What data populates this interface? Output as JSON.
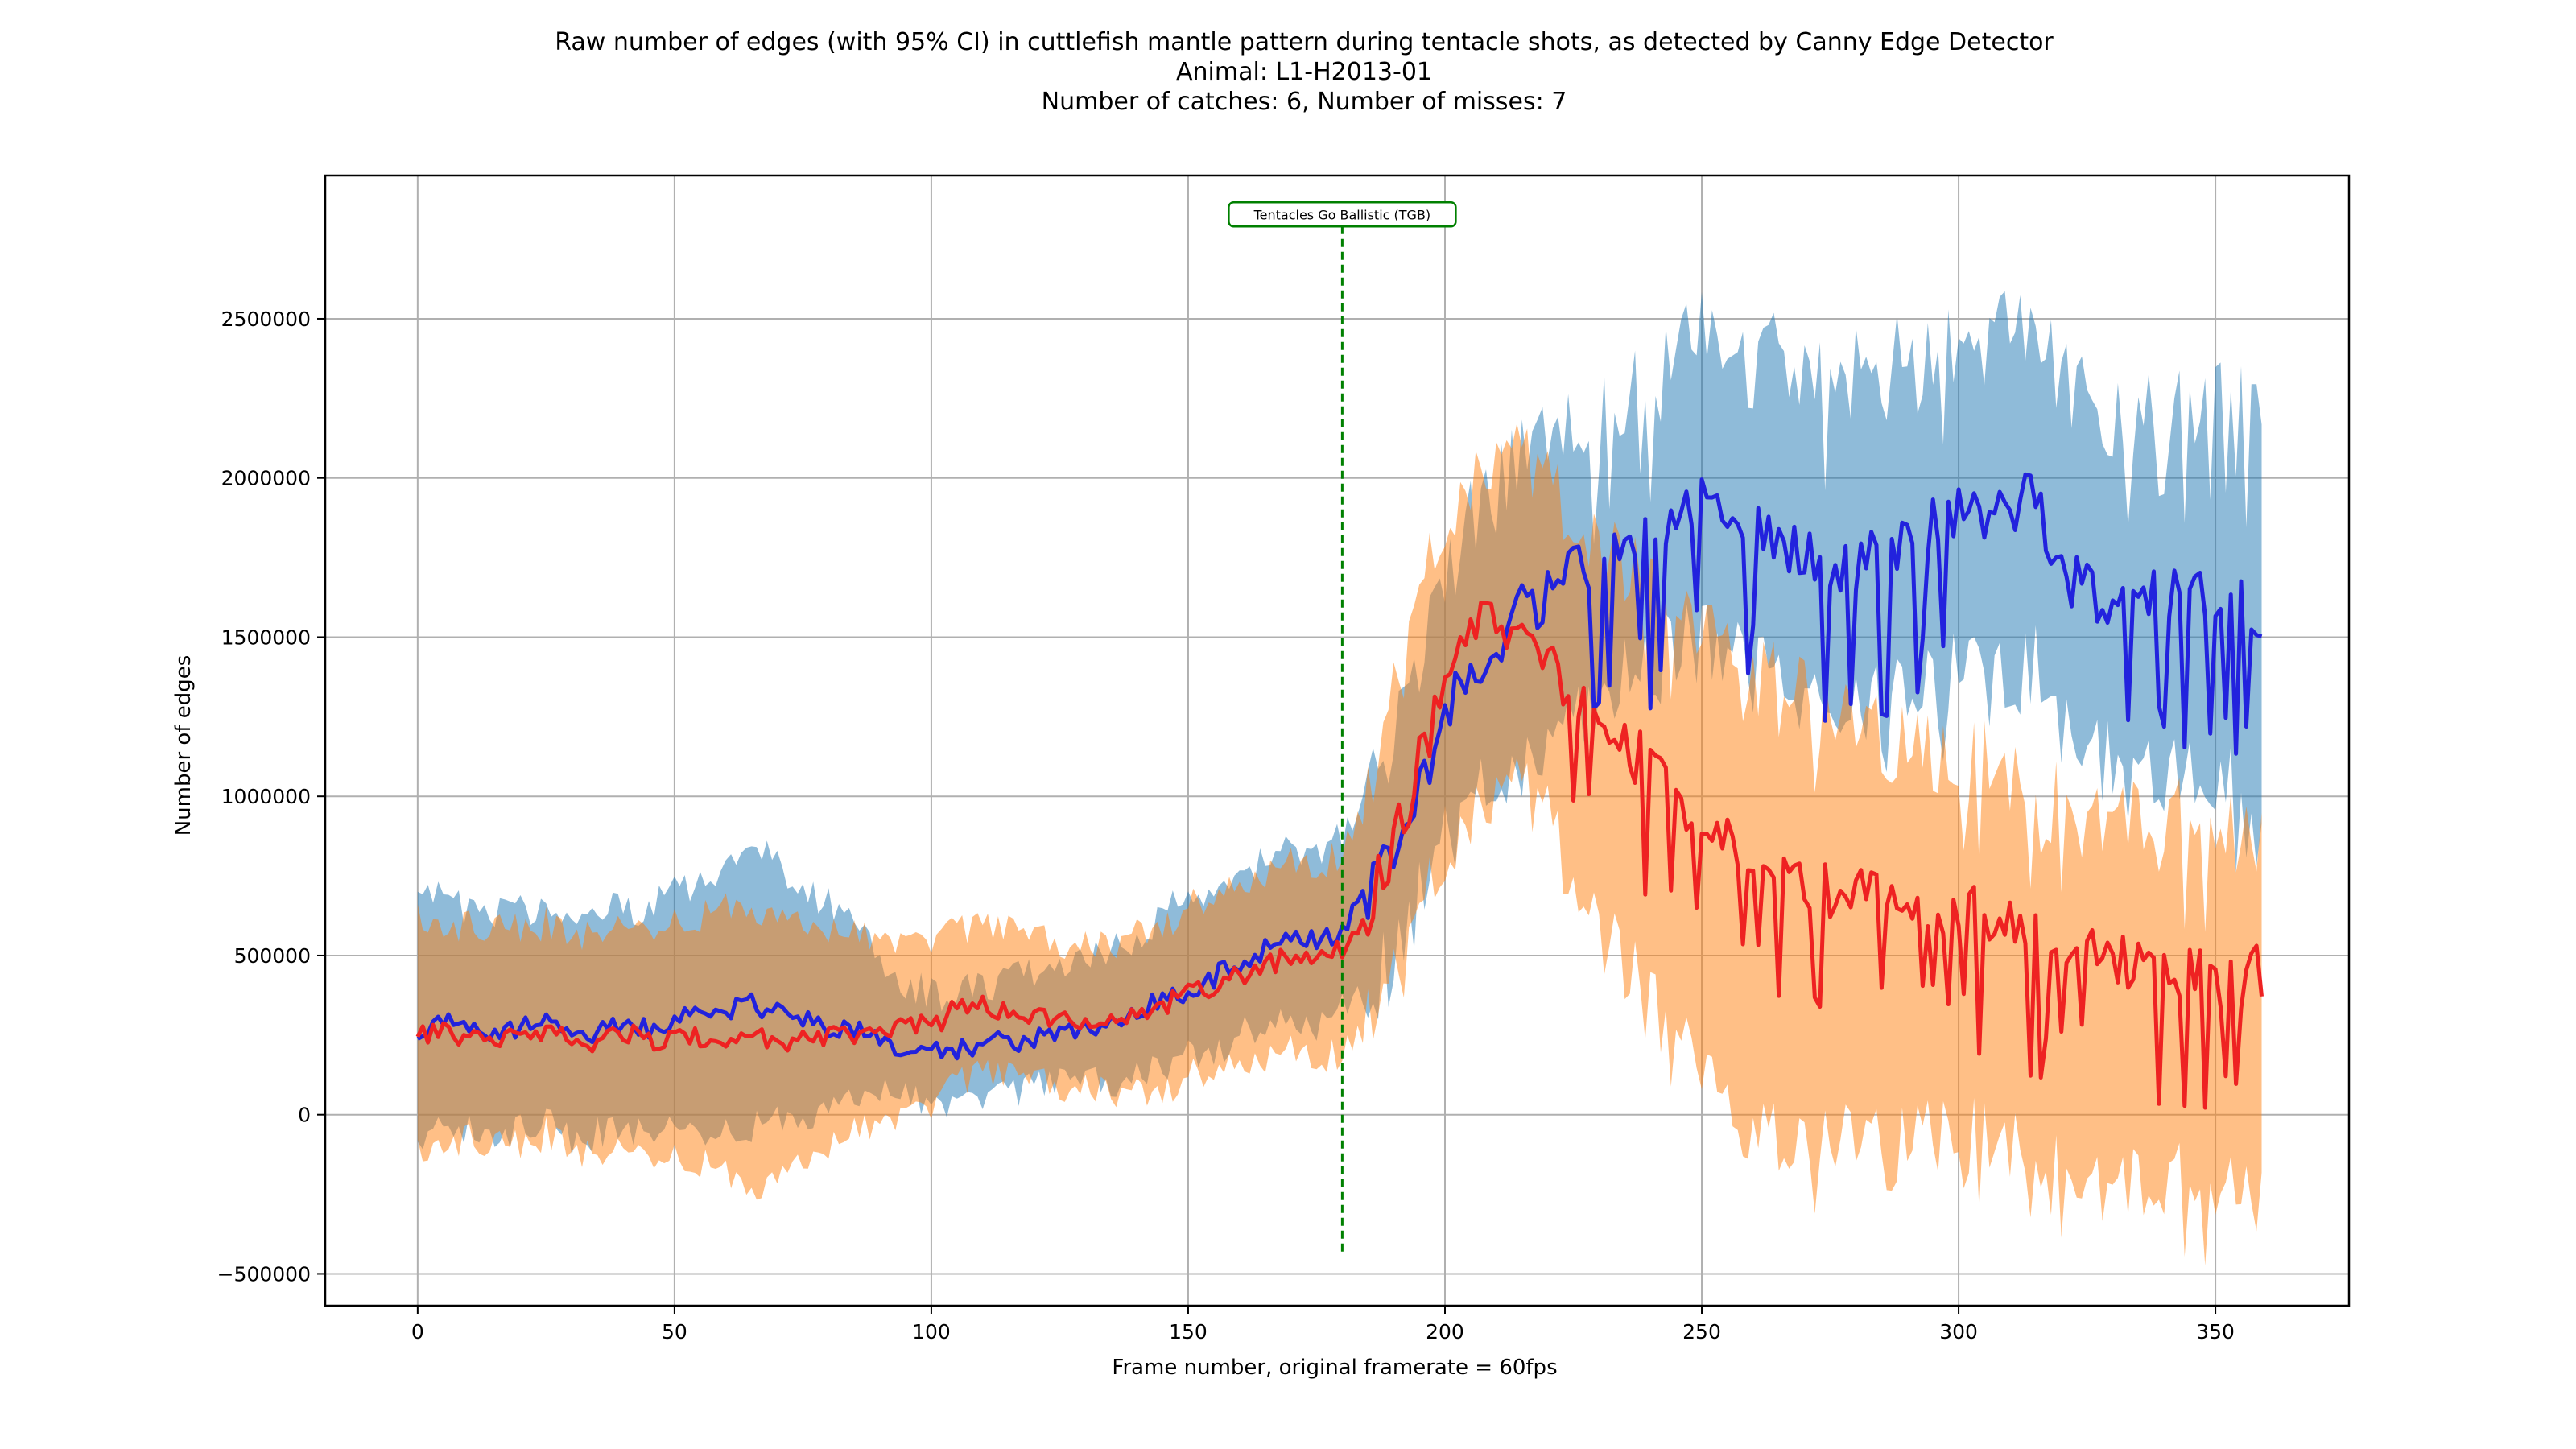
{
  "chart_data": {
    "type": "line",
    "title": [
      "Raw number of edges (with 95% CI) in cuttlefish mantle pattern during tentacle shots, as detected by Canny Edge Detector",
      "Animal: L1-H2013-01",
      "Number of catches: 6, Number of misses: 7"
    ],
    "xlabel": "Frame number, original framerate = 60fps",
    "ylabel": "Number of edges",
    "xlim": [
      -18,
      376
    ],
    "ylim": [
      -600000,
      2950000
    ],
    "xticks": [
      0,
      50,
      100,
      150,
      200,
      250,
      300,
      350
    ],
    "yticks": [
      -500000,
      0,
      500000,
      1000000,
      1500000,
      2000000,
      2500000
    ],
    "grid": true,
    "annotation": {
      "label": "Tentacles Go Ballistic (TGB)",
      "x": 180,
      "y_from": -430000,
      "y_to": 2790000,
      "color": "#008000"
    },
    "series": [
      {
        "color": "#2222dd",
        "band_color": "#1f77b4",
        "keys": [
          [
            0,
            260000,
            -80000,
            700000
          ],
          [
            5,
            300000,
            -60000,
            680000
          ],
          [
            10,
            280000,
            -40000,
            630000
          ],
          [
            15,
            260000,
            -60000,
            620000
          ],
          [
            20,
            270000,
            -50000,
            650000
          ],
          [
            25,
            290000,
            -20000,
            640000
          ],
          [
            30,
            250000,
            -80000,
            600000
          ],
          [
            35,
            260000,
            -60000,
            640000
          ],
          [
            40,
            280000,
            -40000,
            650000
          ],
          [
            45,
            270000,
            -50000,
            640000
          ],
          [
            50,
            300000,
            -30000,
            700000
          ],
          [
            55,
            310000,
            -50000,
            730000
          ],
          [
            60,
            330000,
            -60000,
            780000
          ],
          [
            65,
            350000,
            -40000,
            860000
          ],
          [
            70,
            320000,
            -30000,
            800000
          ],
          [
            75,
            300000,
            0,
            700000
          ],
          [
            80,
            280000,
            20000,
            660000
          ],
          [
            85,
            270000,
            40000,
            620000
          ],
          [
            90,
            240000,
            60000,
            500000
          ],
          [
            95,
            200000,
            50000,
            420000
          ],
          [
            100,
            190000,
            40000,
            380000
          ],
          [
            105,
            200000,
            50000,
            380000
          ],
          [
            110,
            220000,
            70000,
            400000
          ],
          [
            115,
            230000,
            60000,
            430000
          ],
          [
            120,
            240000,
            80000,
            450000
          ],
          [
            125,
            260000,
            90000,
            470000
          ],
          [
            130,
            270000,
            100000,
            480000
          ],
          [
            135,
            290000,
            100000,
            520000
          ],
          [
            140,
            320000,
            120000,
            560000
          ],
          [
            145,
            360000,
            150000,
            630000
          ],
          [
            150,
            390000,
            180000,
            680000
          ],
          [
            155,
            430000,
            200000,
            720000
          ],
          [
            160,
            480000,
            250000,
            760000
          ],
          [
            165,
            520000,
            270000,
            800000
          ],
          [
            170,
            560000,
            300000,
            850000
          ],
          [
            175,
            540000,
            280000,
            820000
          ],
          [
            180,
            580000,
            330000,
            880000
          ],
          [
            185,
            700000,
            400000,
            1000000
          ],
          [
            190,
            850000,
            500000,
            1200000
          ],
          [
            195,
            1050000,
            700000,
            1450000
          ],
          [
            200,
            1250000,
            850000,
            1700000
          ],
          [
            205,
            1400000,
            950000,
            1850000
          ],
          [
            210,
            1500000,
            1050000,
            1950000
          ],
          [
            215,
            1580000,
            1100000,
            2050000
          ],
          [
            220,
            1620000,
            1150000,
            2100000
          ],
          [
            225,
            1700000,
            1200000,
            2150000
          ],
          [
            230,
            1750000,
            1300000,
            2200000
          ],
          [
            235,
            1800000,
            1350000,
            2250000
          ],
          [
            240,
            1850000,
            1400000,
            2350000
          ],
          [
            245,
            1900000,
            1450000,
            2420000
          ],
          [
            250,
            1950000,
            1500000,
            2500000
          ],
          [
            255,
            1920000,
            1450000,
            2480000
          ],
          [
            260,
            1850000,
            1400000,
            2420000
          ],
          [
            265,
            1800000,
            1350000,
            2400000
          ],
          [
            270,
            1750000,
            1300000,
            2350000
          ],
          [
            275,
            1720000,
            1250000,
            2300000
          ],
          [
            280,
            1700000,
            1250000,
            2350000
          ],
          [
            285,
            1780000,
            1300000,
            2400000
          ],
          [
            290,
            1800000,
            1350000,
            2400000
          ],
          [
            295,
            1850000,
            1350000,
            2400000
          ],
          [
            300,
            1900000,
            1400000,
            2450000
          ],
          [
            305,
            1880000,
            1350000,
            2420000
          ],
          [
            310,
            1900000,
            1350000,
            2450000
          ],
          [
            315,
            1950000,
            1400000,
            2500000
          ],
          [
            320,
            1700000,
            1200000,
            2300000
          ],
          [
            325,
            1650000,
            1150000,
            2250000
          ],
          [
            330,
            1600000,
            1100000,
            2200000
          ],
          [
            335,
            1620000,
            1100000,
            2200000
          ],
          [
            340,
            1640000,
            1100000,
            2200000
          ],
          [
            345,
            1650000,
            1100000,
            2250000
          ],
          [
            350,
            1620000,
            1050000,
            2250000
          ],
          [
            355,
            1600000,
            1000000,
            2250000
          ],
          [
            359,
            1570000,
            900000,
            2200000
          ]
        ]
      },
      {
        "color": "#ee2222",
        "band_color": "#ff7f0e",
        "keys": [
          [
            0,
            240000,
            -120000,
            620000
          ],
          [
            5,
            260000,
            -80000,
            600000
          ],
          [
            10,
            250000,
            -80000,
            590000
          ],
          [
            15,
            230000,
            -100000,
            580000
          ],
          [
            20,
            240000,
            -90000,
            590000
          ],
          [
            25,
            270000,
            -60000,
            600000
          ],
          [
            30,
            230000,
            -110000,
            560000
          ],
          [
            35,
            230000,
            -120000,
            580000
          ],
          [
            40,
            250000,
            -100000,
            600000
          ],
          [
            45,
            240000,
            -120000,
            590000
          ],
          [
            50,
            230000,
            -140000,
            600000
          ],
          [
            55,
            240000,
            -150000,
            620000
          ],
          [
            60,
            220000,
            -200000,
            640000
          ],
          [
            65,
            230000,
            -220000,
            660000
          ],
          [
            70,
            240000,
            -200000,
            620000
          ],
          [
            75,
            230000,
            -160000,
            590000
          ],
          [
            80,
            240000,
            -120000,
            560000
          ],
          [
            85,
            250000,
            -60000,
            560000
          ],
          [
            90,
            260000,
            -20000,
            560000
          ],
          [
            95,
            270000,
            20000,
            560000
          ],
          [
            100,
            280000,
            40000,
            560000
          ],
          [
            105,
            330000,
            100000,
            580000
          ],
          [
            110,
            340000,
            120000,
            580000
          ],
          [
            115,
            330000,
            110000,
            570000
          ],
          [
            120,
            320000,
            100000,
            550000
          ],
          [
            125,
            310000,
            90000,
            540000
          ],
          [
            130,
            300000,
            80000,
            530000
          ],
          [
            135,
            300000,
            70000,
            530000
          ],
          [
            140,
            320000,
            60000,
            560000
          ],
          [
            145,
            340000,
            80000,
            600000
          ],
          [
            150,
            380000,
            120000,
            650000
          ],
          [
            155,
            400000,
            130000,
            680000
          ],
          [
            160,
            440000,
            160000,
            720000
          ],
          [
            165,
            470000,
            180000,
            760000
          ],
          [
            170,
            500000,
            200000,
            790000
          ],
          [
            175,
            480000,
            180000,
            780000
          ],
          [
            180,
            520000,
            200000,
            830000
          ],
          [
            185,
            650000,
            300000,
            1000000
          ],
          [
            190,
            850000,
            400000,
            1300000
          ],
          [
            195,
            1100000,
            600000,
            1600000
          ],
          [
            200,
            1350000,
            800000,
            1850000
          ],
          [
            205,
            1500000,
            950000,
            2000000
          ],
          [
            210,
            1550000,
            1000000,
            2050000
          ],
          [
            215,
            1500000,
            1000000,
            2050000
          ],
          [
            220,
            1400000,
            900000,
            1950000
          ],
          [
            225,
            1300000,
            700000,
            1850000
          ],
          [
            230,
            1200000,
            550000,
            1750000
          ],
          [
            235,
            1150000,
            450000,
            1700000
          ],
          [
            240,
            1100000,
            350000,
            1650000
          ],
          [
            245,
            1000000,
            250000,
            1550000
          ],
          [
            250,
            900000,
            100000,
            1500000
          ],
          [
            255,
            850000,
            0,
            1450000
          ],
          [
            260,
            780000,
            -50000,
            1400000
          ],
          [
            265,
            740000,
            -100000,
            1350000
          ],
          [
            270,
            720000,
            -150000,
            1300000
          ],
          [
            275,
            700000,
            -100000,
            1250000
          ],
          [
            280,
            720000,
            -50000,
            1250000
          ],
          [
            285,
            700000,
            -100000,
            1200000
          ],
          [
            290,
            680000,
            -100000,
            1150000
          ],
          [
            295,
            650000,
            -50000,
            1150000
          ],
          [
            300,
            640000,
            -50000,
            1100000
          ],
          [
            305,
            620000,
            -100000,
            1100000
          ],
          [
            310,
            580000,
            -100000,
            1050000
          ],
          [
            315,
            560000,
            -150000,
            1000000
          ],
          [
            320,
            540000,
            -200000,
            980000
          ],
          [
            325,
            520000,
            -200000,
            950000
          ],
          [
            330,
            500000,
            -220000,
            950000
          ],
          [
            335,
            480000,
            -200000,
            950000
          ],
          [
            340,
            460000,
            -220000,
            920000
          ],
          [
            345,
            440000,
            -230000,
            920000
          ],
          [
            350,
            430000,
            -230000,
            920000
          ],
          [
            355,
            420000,
            -230000,
            900000
          ],
          [
            359,
            450000,
            -230000,
            900000
          ]
        ]
      }
    ]
  }
}
